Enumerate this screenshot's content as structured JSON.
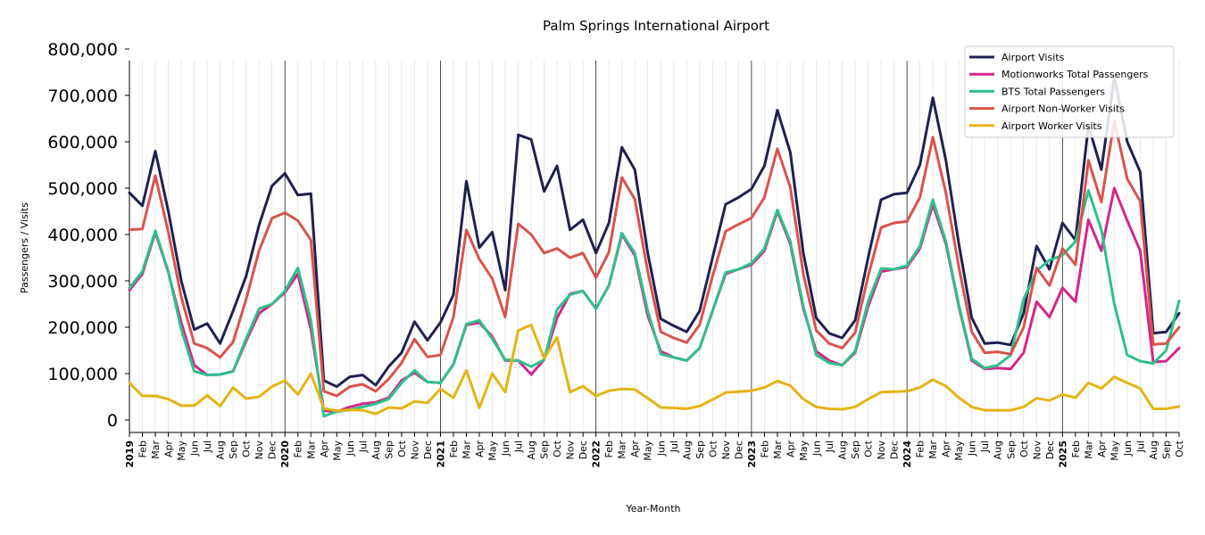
{
  "chart_data": {
    "type": "line",
    "title": "Palm Springs International Airport",
    "xlabel": "Year-Month",
    "ylabel": "Passengers / Visits",
    "ylim": [
      0,
      800000
    ],
    "yticks": [
      0,
      100000,
      200000,
      300000,
      400000,
      500000,
      600000,
      700000,
      800000
    ],
    "ytick_labels": [
      "0",
      "100,000",
      "200,000",
      "300,000",
      "400,000",
      "500,000",
      "600,000",
      "700,000",
      "800,000"
    ],
    "legend_position": "top-right",
    "x": [
      "2019",
      "Feb",
      "Mar",
      "Apr",
      "May",
      "Jun",
      "Jul",
      "Aug",
      "Sep",
      "Oct",
      "Nov",
      "Dec",
      "2020",
      "Feb",
      "Mar",
      "Apr",
      "May",
      "Jun",
      "Jul",
      "Aug",
      "Sep",
      "Oct",
      "Nov",
      "Dec",
      "2021",
      "Feb",
      "Mar",
      "Apr",
      "May",
      "Jun",
      "Jul",
      "Aug",
      "Sep",
      "Oct",
      "Nov",
      "Dec",
      "2022",
      "Feb",
      "Mar",
      "Apr",
      "May",
      "Jun",
      "Jul",
      "Aug",
      "Sep",
      "Oct",
      "Nov",
      "Dec",
      "2023",
      "Feb",
      "Mar",
      "Apr",
      "May",
      "Jun",
      "Jul",
      "Aug",
      "Sep",
      "Oct",
      "Nov",
      "Dec",
      "2024",
      "Feb",
      "Mar",
      "Apr",
      "May",
      "Jun",
      "Jul",
      "Aug",
      "Sep",
      "Oct",
      "Nov",
      "Dec",
      "2025",
      "Feb",
      "Mar",
      "Apr",
      "May",
      "Jun",
      "Jul",
      "Aug",
      "Sep",
      "Oct"
    ],
    "series": [
      {
        "name": "Airport Visits",
        "color": "#1f2150",
        "values": [
          490000,
          462000,
          580000,
          450000,
          300000,
          195000,
          208000,
          165000,
          235000,
          310000,
          420000,
          505000,
          532000,
          485000,
          488000,
          85000,
          72000,
          93000,
          97000,
          75000,
          115000,
          145000,
          212000,
          172000,
          210000,
          270000,
          515000,
          372000,
          405000,
          280000,
          615000,
          605000,
          493000,
          548000,
          410000,
          432000,
          360000,
          425000,
          588000,
          540000,
          360000,
          218000,
          203000,
          190000,
          235000,
          350000,
          465000,
          480000,
          498000,
          548000,
          668000,
          577000,
          360000,
          220000,
          187000,
          177000,
          215000,
          350000,
          475000,
          487000,
          490000,
          550000,
          695000,
          560000,
          380000,
          220000,
          165000,
          167000,
          162000,
          230000,
          375000,
          325000,
          425000,
          388000,
          635000,
          540000,
          740000,
          600000,
          535000,
          187000,
          190000,
          230000
        ]
      },
      {
        "name": "Motionworks Total Passengers",
        "color": "#d4268b",
        "values": [
          280000,
          315000,
          405000,
          318000,
          210000,
          118000,
          97000,
          98000,
          105000,
          170000,
          230000,
          250000,
          275000,
          315000,
          195000,
          20000,
          18000,
          28000,
          35000,
          38000,
          48000,
          85000,
          102000,
          82000,
          80000,
          120000,
          205000,
          210000,
          180000,
          128000,
          128000,
          98000,
          130000,
          220000,
          272000,
          278000,
          240000,
          290000,
          400000,
          355000,
          225000,
          148000,
          135000,
          128000,
          155000,
          235000,
          315000,
          325000,
          335000,
          365000,
          450000,
          380000,
          240000,
          148000,
          128000,
          118000,
          145000,
          245000,
          320000,
          325000,
          330000,
          370000,
          465000,
          380000,
          245000,
          128000,
          110000,
          112000,
          110000,
          145000,
          255000,
          222000,
          285000,
          255000,
          432000,
          365000,
          500000,
          430000,
          365000,
          125000,
          127000,
          155000
        ]
      },
      {
        "name": "BTS Total Passengers",
        "color": "#2ec08b",
        "values": [
          285000,
          320000,
          408000,
          320000,
          195000,
          105000,
          97000,
          98000,
          105000,
          175000,
          240000,
          250000,
          278000,
          328000,
          215000,
          8000,
          18000,
          22000,
          28000,
          35000,
          45000,
          80000,
          107000,
          82000,
          80000,
          120000,
          207000,
          215000,
          175000,
          130000,
          128000,
          115000,
          130000,
          238000,
          270000,
          278000,
          240000,
          290000,
          403000,
          360000,
          235000,
          142000,
          135000,
          128000,
          155000,
          235000,
          318000,
          325000,
          338000,
          370000,
          453000,
          385000,
          245000,
          140000,
          123000,
          118000,
          148000,
          255000,
          327000,
          325000,
          333000,
          375000,
          475000,
          385000,
          248000,
          132000,
          112000,
          118000,
          140000,
          260000,
          322000,
          345000,
          355000,
          385000,
          495000,
          410000,
          250000,
          140000,
          127000,
          122000,
          150000,
          257000
        ]
      },
      {
        "name": "Airport Non-Worker Visits",
        "color": "#d9534c",
        "values": [
          410000,
          412000,
          527000,
          405000,
          265000,
          165000,
          155000,
          135000,
          168000,
          260000,
          365000,
          435000,
          447000,
          430000,
          388000,
          62000,
          52000,
          72000,
          77000,
          62000,
          88000,
          123000,
          174000,
          136000,
          140000,
          222000,
          410000,
          347000,
          305000,
          222000,
          423000,
          400000,
          360000,
          370000,
          350000,
          360000,
          307000,
          362000,
          523000,
          476000,
          320000,
          190000,
          177000,
          167000,
          205000,
          310000,
          407000,
          422000,
          436000,
          480000,
          585000,
          502000,
          315000,
          193000,
          165000,
          155000,
          188000,
          310000,
          415000,
          425000,
          428000,
          480000,
          610000,
          490000,
          330000,
          190000,
          145000,
          147000,
          142000,
          200000,
          328000,
          290000,
          370000,
          335000,
          560000,
          470000,
          645000,
          520000,
          472000,
          163000,
          165000,
          200000
        ]
      },
      {
        "name": "Airport Worker Visits",
        "color": "#e4b414",
        "values": [
          80000,
          52000,
          52000,
          45000,
          31000,
          31000,
          53000,
          30000,
          70000,
          46000,
          50000,
          72000,
          85000,
          55000,
          100000,
          25000,
          20000,
          22000,
          21000,
          13000,
          27000,
          25000,
          40000,
          37000,
          67000,
          48000,
          107000,
          26000,
          100000,
          60000,
          193000,
          205000,
          133000,
          178000,
          60000,
          73000,
          52000,
          63000,
          67000,
          66000,
          47000,
          27000,
          26000,
          24000,
          30000,
          44000,
          59000,
          61000,
          63000,
          70000,
          84000,
          74000,
          45000,
          28000,
          24000,
          23000,
          28000,
          45000,
          60000,
          61000,
          62000,
          70000,
          87000,
          73000,
          48000,
          28000,
          21000,
          21000,
          21000,
          28000,
          47000,
          42000,
          55000,
          48000,
          80000,
          68000,
          93000,
          80000,
          68000,
          24000,
          24000,
          29000
        ]
      }
    ]
  }
}
